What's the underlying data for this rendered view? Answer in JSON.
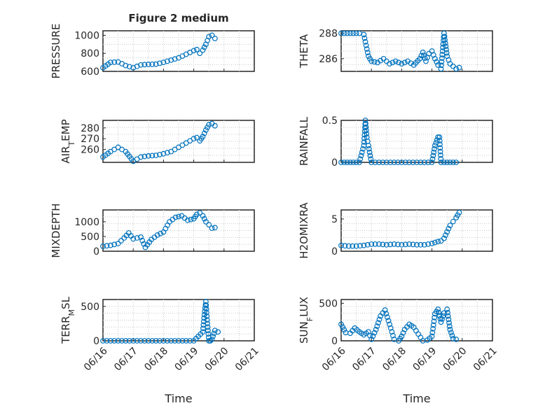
{
  "chart_data": [
    {
      "id": "pressure",
      "type": "scatter",
      "title": "Figure 2 medium",
      "ylabel": "PRESSURE",
      "ylabel_sub": "",
      "ylabel_tail": "",
      "xlabel": "",
      "x_tick_labels": [],
      "ylim": [
        600,
        1050
      ],
      "yticks": [
        600,
        800,
        1000
      ],
      "ytick_labels": [
        "600",
        "800",
        "1000"
      ],
      "grid": true,
      "series": [
        {
          "x": [
            0,
            0.25,
            0.5,
            0.75,
            1.0,
            1.25,
            1.5,
            1.75,
            2.0,
            2.25,
            2.5,
            2.75,
            3.0,
            3.1,
            3.2,
            3.3,
            3.4,
            3.5,
            3.6,
            3.7
          ],
          "y": [
            640,
            700,
            705,
            665,
            640,
            672,
            678,
            680,
            700,
            725,
            750,
            790,
            830,
            842,
            800,
            835,
            900,
            985,
            1000,
            965
          ]
        }
      ]
    },
    {
      "id": "theta",
      "type": "scatter",
      "title": "",
      "ylabel": "THETA",
      "ylabel_sub": "",
      "ylabel_tail": "",
      "xlabel": "",
      "x_tick_labels": [],
      "ylim": [
        285,
        288.2
      ],
      "yticks": [
        286,
        288
      ],
      "ytick_labels": [
        "286",
        "288"
      ],
      "grid": true,
      "series": [
        {
          "x": [
            0,
            0.2,
            0.4,
            0.6,
            0.75,
            0.9,
            1.0,
            1.2,
            1.4,
            1.6,
            1.8,
            2.0,
            2.2,
            2.4,
            2.6,
            2.7,
            2.8,
            2.9,
            3.0,
            3.1,
            3.2,
            3.3,
            3.4,
            3.5,
            3.6,
            3.7,
            3.8,
            3.9
          ],
          "y": [
            288,
            288,
            288,
            288,
            287.9,
            286.2,
            285.8,
            285.7,
            286,
            285.6,
            285.8,
            285.6,
            285.8,
            285.5,
            286,
            286.5,
            285.8,
            286.4,
            286.6,
            286,
            285.5,
            285.2,
            288,
            286.2,
            285.6,
            285.4,
            285.2,
            285.3
          ]
        }
      ]
    },
    {
      "id": "air-temp",
      "type": "scatter",
      "title": "",
      "ylabel": "AIR",
      "ylabel_sub": "T",
      "ylabel_tail": "EMP",
      "xlabel": "",
      "x_tick_labels": [],
      "ylim": [
        248,
        287
      ],
      "yticks": [
        260,
        270,
        280
      ],
      "ytick_labels": [
        "260",
        "270",
        "280"
      ],
      "grid": true,
      "series": [
        {
          "x": [
            0,
            0.25,
            0.5,
            0.75,
            1.0,
            1.25,
            1.5,
            1.75,
            2.0,
            2.25,
            2.5,
            2.75,
            3.0,
            3.1,
            3.2,
            3.3,
            3.4,
            3.5,
            3.6,
            3.7
          ],
          "y": [
            253,
            258,
            262,
            258,
            249,
            253,
            254,
            254.5,
            256,
            258,
            262,
            266,
            270,
            271,
            268,
            272,
            278,
            283,
            284,
            282
          ]
        }
      ]
    },
    {
      "id": "rainfall",
      "type": "scatter",
      "title": "",
      "ylabel": "RAINFALL",
      "ylabel_sub": "",
      "ylabel_tail": "",
      "xlabel": "",
      "x_tick_labels": [],
      "ylim": [
        0,
        0.5
      ],
      "yticks": [
        0,
        0.5
      ],
      "ytick_labels": [
        "0",
        "0.5"
      ],
      "grid": true,
      "series": [
        {
          "x": [
            0,
            0.2,
            0.4,
            0.6,
            0.75,
            0.8,
            0.85,
            0.9,
            1.0,
            1.5,
            2.0,
            2.5,
            3.0,
            3.1,
            3.2,
            3.25,
            3.3,
            3.4,
            3.6,
            3.8
          ],
          "y": [
            0,
            0,
            0,
            0,
            0.2,
            0.5,
            0.3,
            0.2,
            0,
            0,
            0,
            0,
            0,
            0.2,
            0.3,
            0.3,
            0,
            0,
            0,
            0
          ]
        }
      ]
    },
    {
      "id": "mixdepth",
      "type": "scatter",
      "title": "",
      "ylabel": "MIXDEPTH",
      "ylabel_sub": "",
      "ylabel_tail": "",
      "xlabel": "",
      "x_tick_labels": [],
      "ylim": [
        0,
        1400
      ],
      "yticks": [
        0,
        500,
        1000
      ],
      "ytick_labels": [
        "0",
        "500",
        "1000"
      ],
      "grid": true,
      "series": [
        {
          "x": [
            0,
            0.25,
            0.5,
            0.7,
            0.85,
            1.0,
            1.25,
            1.4,
            1.6,
            1.8,
            2.0,
            2.2,
            2.4,
            2.6,
            2.8,
            3.0,
            3.1,
            3.2,
            3.3,
            3.4,
            3.5,
            3.6,
            3.7
          ],
          "y": [
            170,
            200,
            260,
            450,
            620,
            420,
            480,
            130,
            400,
            550,
            650,
            1000,
            1150,
            1200,
            1050,
            1100,
            1250,
            1300,
            1200,
            1000,
            900,
            780,
            800
          ]
        }
      ]
    },
    {
      "id": "h2omixra",
      "type": "scatter",
      "title": "",
      "ylabel": "H2OMIXRA",
      "ylabel_sub": "",
      "ylabel_tail": "",
      "xlabel": "",
      "x_tick_labels": [],
      "ylim": [
        0,
        6.4
      ],
      "yticks": [
        0,
        5
      ],
      "ytick_labels": [
        "0",
        "5"
      ],
      "grid": true,
      "series": [
        {
          "x": [
            0,
            0.25,
            0.5,
            0.75,
            1.0,
            1.25,
            1.5,
            1.75,
            2.0,
            2.25,
            2.5,
            2.75,
            3.0,
            3.2,
            3.3,
            3.4,
            3.5,
            3.6,
            3.7,
            3.8,
            3.9
          ],
          "y": [
            0.9,
            0.8,
            0.8,
            0.9,
            1.1,
            1.1,
            1.0,
            1.1,
            1.0,
            1.1,
            1.0,
            1.0,
            1.2,
            1.5,
            1.6,
            2.0,
            3.0,
            4.0,
            4.6,
            5.2,
            6.0
          ]
        }
      ]
    },
    {
      "id": "terr-msl",
      "type": "scatter",
      "title": "",
      "ylabel": "TERR",
      "ylabel_sub": "M",
      "ylabel_tail": "SL",
      "xlabel": "Time",
      "x_tick_labels": [
        "06/16",
        "06/17",
        "06/18",
        "06/19",
        "06/20",
        "06/21"
      ],
      "ylim": [
        0,
        600
      ],
      "yticks": [
        0,
        500
      ],
      "ytick_labels": [
        "0",
        "500"
      ],
      "grid": true,
      "series": [
        {
          "x": [
            0,
            0.5,
            1.0,
            1.5,
            2.0,
            2.5,
            3.0,
            3.3,
            3.35,
            3.4,
            3.45,
            3.5,
            3.55,
            3.6,
            3.7,
            3.8
          ],
          "y": [
            0,
            0,
            0,
            0,
            0,
            0,
            0,
            130,
            380,
            570,
            250,
            0,
            0,
            20,
            150,
            130
          ]
        }
      ]
    },
    {
      "id": "sun-flux",
      "type": "scatter",
      "title": "",
      "ylabel": "SUN",
      "ylabel_sub": "F",
      "ylabel_tail": "LUX",
      "xlabel": "Time",
      "x_tick_labels": [
        "06/16",
        "06/17",
        "06/18",
        "06/19",
        "06/20",
        "06/21"
      ],
      "ylim": [
        0,
        550
      ],
      "yticks": [
        0,
        500
      ],
      "ytick_labels": [
        "0",
        "500"
      ],
      "grid": true,
      "series": [
        {
          "x": [
            0,
            0.15,
            0.3,
            0.45,
            0.6,
            0.75,
            0.9,
            1.0,
            1.15,
            1.3,
            1.45,
            1.6,
            1.75,
            1.9,
            2.0,
            2.1,
            2.25,
            2.4,
            2.55,
            2.7,
            2.85,
            3.0,
            3.1,
            3.2,
            3.3,
            3.4,
            3.5,
            3.6,
            3.7,
            3.8
          ],
          "y": [
            220,
            110,
            100,
            170,
            120,
            80,
            120,
            20,
            150,
            330,
            410,
            220,
            20,
            0,
            60,
            150,
            220,
            180,
            90,
            0,
            10,
            60,
            360,
            420,
            250,
            370,
            420,
            150,
            30,
            20
          ]
        }
      ]
    }
  ]
}
